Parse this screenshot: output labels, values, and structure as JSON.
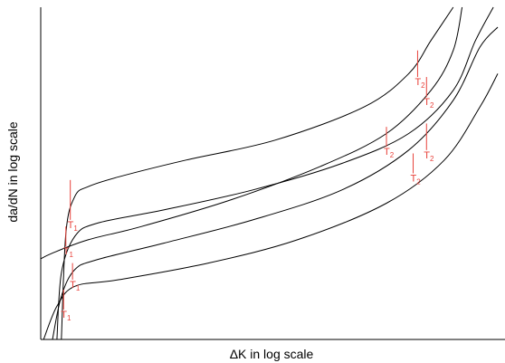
{
  "chart_data": {
    "type": "line",
    "title": "",
    "xlabel": "ΔK in log scale",
    "ylabel": "da/dN in log scale",
    "xscale": "log",
    "yscale": "log",
    "xlim": [
      0,
      100
    ],
    "ylim": [
      0,
      100
    ],
    "grid": false,
    "tick_labels": false,
    "colors": {
      "curve": "#000000",
      "marker": "#e8413a",
      "axis": "#000000"
    },
    "series": [
      {
        "values": [
          [
            2,
            0
          ],
          [
            3,
            32
          ],
          [
            5,
            43
          ],
          [
            8,
            46
          ],
          [
            15,
            49
          ],
          [
            30,
            54
          ],
          [
            50,
            60
          ],
          [
            70,
            70
          ],
          [
            80,
            80
          ],
          [
            85,
            90
          ],
          [
            90,
            100
          ]
        ]
      },
      {
        "values": [
          [
            1,
            0
          ],
          [
            2,
            20
          ],
          [
            5,
            31
          ],
          [
            10,
            35
          ],
          [
            25,
            39
          ],
          [
            45,
            45
          ],
          [
            65,
            53
          ],
          [
            80,
            62
          ],
          [
            90,
            75
          ],
          [
            95,
            90
          ],
          [
            99,
            100
          ]
        ]
      },
      {
        "values": [
          [
            -3,
            24
          ],
          [
            0,
            26
          ],
          [
            8,
            30
          ],
          [
            20,
            34
          ],
          [
            40,
            42
          ],
          [
            60,
            52
          ],
          [
            75,
            62
          ],
          [
            85,
            75
          ],
          [
            90,
            87
          ],
          [
            92,
            100
          ]
        ]
      },
      {
        "values": [
          [
            0,
            0
          ],
          [
            2,
            13
          ],
          [
            5,
            21
          ],
          [
            10,
            24
          ],
          [
            25,
            29
          ],
          [
            45,
            36
          ],
          [
            65,
            45
          ],
          [
            80,
            57
          ],
          [
            90,
            72
          ],
          [
            96,
            88
          ],
          [
            100,
            94
          ]
        ]
      },
      {
        "values": [
          [
            -2,
            0
          ],
          [
            1,
            10
          ],
          [
            5,
            16
          ],
          [
            15,
            18
          ],
          [
            35,
            23
          ],
          [
            55,
            30
          ],
          [
            75,
            41
          ],
          [
            88,
            54
          ],
          [
            96,
            70
          ],
          [
            100,
            80
          ]
        ]
      }
    ],
    "markers": [
      {
        "label": "T",
        "subscript": "1",
        "x": 4,
        "y1": 48,
        "y2": 36
      },
      {
        "label": "T",
        "subscript": "1",
        "x": 3,
        "y1": 34,
        "y2": 28
      },
      {
        "label": "T",
        "subscript": "1",
        "x": 4.5,
        "y1": 23,
        "y2": 18
      },
      {
        "label": "T",
        "subscript": "1",
        "x": 2.5,
        "y1": 15,
        "y2": 9
      },
      {
        "label": "T",
        "subscript": "2",
        "x": 82,
        "y1": 87,
        "y2": 79
      },
      {
        "label": "T",
        "subscript": "2",
        "x": 84,
        "y1": 79,
        "y2": 73
      },
      {
        "label": "T",
        "subscript": "2",
        "x": 75,
        "y1": 64,
        "y2": 58
      },
      {
        "label": "T",
        "subscript": "2",
        "x": 84,
        "y1": 65,
        "y2": 57
      },
      {
        "label": "T",
        "subscript": "2",
        "x": 81,
        "y1": 56,
        "y2": 50
      }
    ]
  }
}
